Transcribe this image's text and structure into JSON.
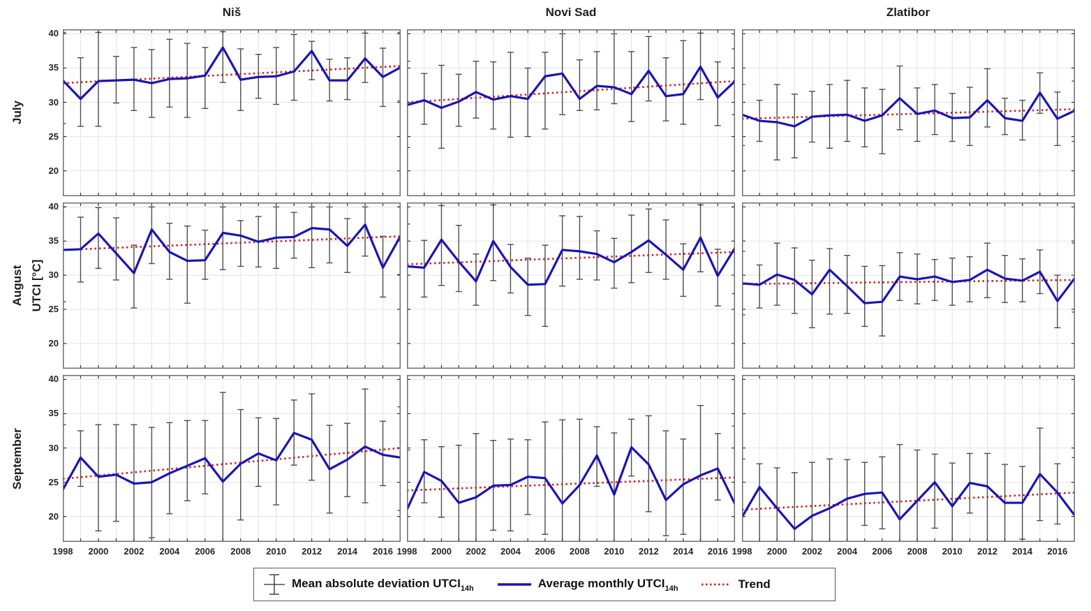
{
  "figure": {
    "columns": [
      "Niš",
      "Novi Sad",
      "Zlatibor"
    ],
    "rows": [
      "July",
      "August",
      "September"
    ],
    "y_axis_label": "UTCI [°C]"
  },
  "legend": {
    "items": [
      {
        "name": "mad",
        "label": "Mean absolute deviation UTCI",
        "sub": "14h"
      },
      {
        "name": "avg",
        "label": "Average monthly UTCI",
        "sub": "14h"
      },
      {
        "name": "trend",
        "label": "Trend",
        "sub": ""
      }
    ]
  },
  "colors": {
    "series_blue": "#1a14b4",
    "trend_red": "#cc2424",
    "errorbar_gray": "#4d4d4d",
    "grid": "#e3e3e3",
    "axis_border": "#6e6e6e",
    "tick": "#2b2b2b",
    "text": "#1f1f1f"
  },
  "chart_data": {
    "type": "line",
    "x": [
      1998,
      1999,
      2000,
      2001,
      2002,
      2003,
      2004,
      2005,
      2006,
      2007,
      2008,
      2009,
      2010,
      2011,
      2012,
      2013,
      2014,
      2015,
      2016,
      2017
    ],
    "x_tick_labels": [
      1998,
      2000,
      2002,
      2004,
      2006,
      2008,
      2010,
      2012,
      2014,
      2016
    ],
    "y_ticks": [
      20,
      25,
      30,
      35,
      40
    ],
    "ylim": [
      16.3,
      40.65
    ],
    "grid": true,
    "legend_position": "bottom",
    "series_names": [
      "Mean absolute deviation UTCI 14h",
      "Average monthly UTCI 14h",
      "Trend"
    ],
    "panels": [
      {
        "city": "Niš",
        "month": "July",
        "values": [
          33.2,
          30.5,
          33.1,
          33.2,
          33.3,
          32.8,
          33.4,
          33.5,
          33.9,
          38.0,
          33.3,
          33.7,
          33.8,
          34.5,
          37.5,
          33.2,
          33.2,
          36.4,
          33.7,
          35.1
        ],
        "err_top": [
          40.2,
          36.5,
          40.2,
          36.7,
          38.0,
          37.7,
          39.2,
          38.6,
          38.0,
          40.3,
          37.8,
          37.0,
          38.0,
          39.9,
          38.9,
          36.3,
          36.5,
          40.1,
          37.9,
          40.2
        ],
        "err_bot": [
          26.9,
          26.5,
          26.5,
          29.9,
          28.8,
          27.8,
          29.3,
          27.8,
          29.1,
          32.9,
          28.8,
          30.6,
          29.7,
          30.3,
          33.3,
          30.2,
          30.4,
          32.9,
          29.4,
          30.2
        ],
        "trend": [
          32.8,
          35.3
        ]
      },
      {
        "city": "Novi Sad",
        "month": "July",
        "values": [
          29.6,
          30.3,
          29.2,
          30.1,
          31.5,
          30.4,
          30.9,
          30.5,
          33.8,
          34.2,
          30.5,
          32.4,
          32.2,
          31.2,
          34.6,
          30.9,
          31.2,
          35.2,
          30.7,
          33.1
        ],
        "err_top": [
          36.0,
          34.2,
          35.4,
          34.1,
          36.0,
          35.9,
          37.3,
          35.0,
          37.3,
          40.0,
          36.2,
          37.4,
          40.0,
          37.4,
          39.6,
          36.5,
          39.0,
          40.1,
          35.9,
          37.8
        ],
        "err_bot": [
          23.4,
          26.8,
          23.3,
          26.5,
          27.7,
          26.1,
          24.9,
          25.0,
          26.1,
          28.2,
          28.8,
          28.9,
          29.8,
          27.2,
          30.2,
          27.3,
          26.8,
          30.4,
          26.6,
          28.2
        ],
        "trend": [
          30.0,
          33.1
        ]
      },
      {
        "city": "Zlatibor",
        "month": "July",
        "values": [
          28.2,
          27.3,
          27.1,
          26.5,
          27.9,
          28.1,
          28.2,
          27.3,
          28.1,
          30.6,
          28.3,
          28.8,
          27.7,
          27.8,
          30.3,
          27.7,
          27.3,
          31.4,
          27.6,
          28.8
        ],
        "err_top": [
          32.6,
          30.3,
          32.6,
          31.2,
          31.6,
          32.6,
          33.2,
          32.1,
          31.9,
          35.3,
          32.1,
          32.6,
          31.3,
          32.2,
          34.9,
          30.6,
          30.3,
          34.3,
          31.5,
          33.1
        ],
        "err_bot": [
          23.7,
          24.3,
          21.6,
          21.9,
          24.2,
          23.3,
          24.3,
          23.5,
          22.5,
          26.0,
          24.3,
          25.3,
          24.3,
          23.7,
          26.4,
          25.3,
          24.5,
          28.4,
          23.7,
          24.3
        ],
        "trend": [
          27.6,
          29.0
        ]
      },
      {
        "city": "Niš",
        "month": "August",
        "values": [
          33.7,
          33.8,
          36.1,
          33.2,
          30.3,
          36.7,
          33.4,
          32.1,
          32.2,
          36.2,
          35.8,
          34.9,
          35.5,
          35.6,
          36.9,
          36.7,
          34.3,
          37.4,
          31.1,
          35.8
        ],
        "err_top": [
          40.0,
          38.5,
          39.9,
          38.4,
          34.4,
          40.0,
          37.6,
          37.2,
          36.6,
          40.0,
          38.0,
          38.6,
          40.0,
          39.2,
          40.0,
          40.0,
          38.3,
          40.0,
          35.7,
          40.0
        ],
        "err_bot": [
          26.1,
          29.0,
          31.0,
          29.3,
          25.2,
          31.7,
          29.4,
          25.9,
          29.4,
          30.8,
          31.3,
          31.2,
          31.0,
          32.5,
          31.1,
          31.8,
          30.4,
          32.8,
          26.8,
          30.1
        ],
        "trend": [
          33.7,
          35.7
        ]
      },
      {
        "city": "Novi Sad",
        "month": "August",
        "values": [
          31.3,
          31.1,
          35.2,
          32.0,
          29.1,
          35.0,
          31.2,
          28.6,
          28.7,
          33.7,
          33.5,
          33.1,
          31.9,
          33.4,
          35.1,
          33.0,
          30.8,
          35.5,
          29.9,
          34.0
        ],
        "err_top": [
          37.5,
          35.1,
          40.2,
          37.3,
          33.1,
          40.3,
          34.5,
          32.5,
          34.4,
          38.7,
          38.6,
          36.5,
          35.4,
          38.8,
          39.7,
          38.1,
          34.6,
          40.3,
          33.8,
          40.0
        ],
        "err_bot": [
          25.0,
          26.8,
          28.5,
          27.6,
          25.6,
          29.2,
          27.4,
          24.1,
          22.5,
          28.4,
          29.4,
          29.3,
          28.1,
          28.9,
          30.4,
          29.4,
          26.9,
          30.5,
          25.5,
          27.3
        ],
        "trend": [
          31.6,
          33.4
        ]
      },
      {
        "city": "Zlatibor",
        "month": "August",
        "values": [
          28.8,
          28.6,
          30.1,
          29.3,
          27.2,
          30.8,
          28.4,
          25.9,
          26.1,
          29.8,
          29.4,
          29.8,
          29.0,
          29.3,
          30.8,
          29.5,
          29.2,
          30.5,
          26.2,
          29.6
        ],
        "err_top": [
          33.5,
          31.5,
          34.7,
          34.0,
          32.2,
          33.9,
          32.9,
          31.3,
          31.4,
          33.3,
          33.1,
          32.3,
          32.5,
          32.7,
          34.7,
          32.9,
          32.4,
          33.7,
          30.0,
          34.7
        ],
        "err_bot": [
          24.2,
          25.2,
          25.6,
          24.4,
          22.3,
          24.3,
          24.4,
          22.5,
          21.1,
          26.3,
          25.8,
          26.3,
          25.6,
          26.1,
          26.7,
          26.0,
          26.1,
          27.3,
          22.3,
          24.6
        ],
        "trend": [
          28.7,
          29.3
        ]
      },
      {
        "city": "Niš",
        "month": "September",
        "values": [
          23.9,
          28.6,
          25.8,
          26.1,
          24.8,
          25.0,
          26.3,
          27.4,
          28.5,
          25.1,
          27.7,
          29.2,
          28.2,
          32.2,
          31.2,
          26.9,
          28.3,
          30.2,
          29.0,
          28.6
        ],
        "err_top": [
          33.4,
          32.5,
          33.4,
          33.4,
          33.4,
          33.0,
          33.7,
          34.0,
          34.0,
          38.1,
          35.6,
          34.4,
          34.3,
          37.0,
          37.9,
          33.3,
          33.6,
          38.6,
          33.9,
          36.0
        ],
        "err_bot": [
          15.8,
          24.4,
          17.9,
          19.3,
          16.1,
          16.9,
          20.4,
          22.3,
          23.3,
          15.8,
          19.5,
          24.4,
          21.7,
          27.5,
          25.3,
          20.5,
          22.9,
          22.0,
          24.5,
          20.9
        ],
        "trend": [
          25.5,
          30.0
        ]
      },
      {
        "city": "Novi Sad",
        "month": "September",
        "values": [
          21.0,
          26.5,
          25.2,
          22.0,
          22.8,
          24.5,
          24.6,
          25.8,
          25.6,
          21.9,
          24.6,
          28.9,
          23.2,
          30.1,
          27.6,
          22.4,
          24.7,
          26.0,
          27.0,
          21.8
        ],
        "err_top": [
          29.7,
          31.2,
          30.2,
          30.4,
          32.1,
          31.1,
          31.3,
          31.2,
          33.8,
          34.1,
          34.2,
          33.1,
          32.2,
          34.2,
          34.7,
          32.5,
          31.3,
          36.2,
          32.1,
          33.2
        ],
        "err_bot": [
          15.8,
          22.0,
          19.9,
          15.8,
          15.8,
          18.0,
          17.9,
          20.3,
          17.4,
          15.8,
          15.8,
          24.4,
          15.8,
          25.9,
          20.7,
          17.2,
          17.4,
          15.8,
          22.4,
          15.8
        ],
        "trend": [
          23.8,
          25.7
        ]
      },
      {
        "city": "Zlatibor",
        "month": "September",
        "values": [
          19.9,
          24.3,
          21.2,
          18.2,
          20.1,
          21.2,
          22.6,
          23.3,
          23.5,
          19.6,
          22.3,
          25.0,
          21.5,
          24.9,
          24.4,
          22.0,
          22.0,
          26.2,
          23.5,
          20.1
        ],
        "err_top": [
          28.4,
          27.7,
          27.1,
          26.4,
          27.9,
          28.4,
          28.3,
          27.9,
          28.7,
          30.5,
          29.7,
          29.1,
          27.8,
          29.2,
          29.2,
          27.6,
          27.3,
          32.9,
          27.7,
          28.6
        ],
        "err_bot": [
          15.8,
          15.4,
          15.8,
          15.8,
          15.8,
          16.1,
          15.8,
          18.7,
          18.2,
          15.8,
          15.8,
          18.3,
          15.8,
          20.5,
          15.8,
          16.3,
          16.7,
          19.4,
          18.9,
          15.8
        ],
        "trend": [
          21.0,
          23.5
        ]
      }
    ]
  }
}
